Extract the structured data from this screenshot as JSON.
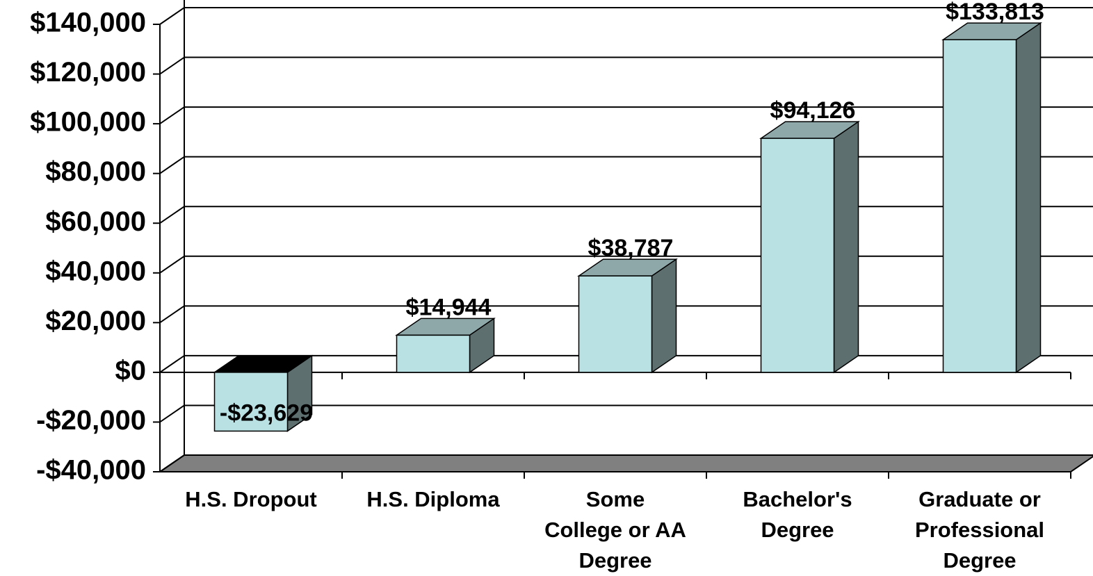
{
  "chart_data": {
    "type": "bar3d",
    "categories": [
      [
        "H.S. Dropout"
      ],
      [
        "H.S. Diploma"
      ],
      [
        "Some",
        "College or AA",
        "Degree"
      ],
      [
        "Bachelor's",
        "Degree"
      ],
      [
        "Graduate or",
        "Professional",
        "Degree"
      ]
    ],
    "values": [
      -23629,
      14944,
      38787,
      94126,
      133813
    ],
    "value_labels": [
      "-$23,629",
      "$14,944",
      "$38,787",
      "$94,126",
      "$133,813"
    ],
    "color": "#b9e0e3",
    "top_color": "#8ea8aa",
    "side_color": "#5e6f70",
    "negative_top_color": "#000000",
    "floor_color": "#808080",
    "ylim": [
      -40000,
      140000
    ],
    "yticks": [
      {
        "value": -40000,
        "label": "-$40,000"
      },
      {
        "value": -20000,
        "label": "-$20,000"
      },
      {
        "value": 0,
        "label": "$0"
      },
      {
        "value": 20000,
        "label": "$20,000"
      },
      {
        "value": 40000,
        "label": "$40,000"
      },
      {
        "value": 60000,
        "label": "$60,000"
      },
      {
        "value": 80000,
        "label": "$80,000"
      },
      {
        "value": 100000,
        "label": "$100,000"
      },
      {
        "value": 120000,
        "label": "$120,000"
      },
      {
        "value": 140000,
        "label": "$140,000"
      }
    ],
    "grid": true
  }
}
